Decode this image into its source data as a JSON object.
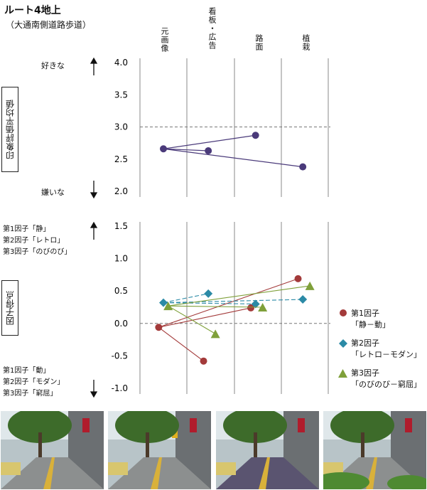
{
  "title": "ルート4地上",
  "subtitle": "（大通南側道路歩道）",
  "columns": [
    "元画像",
    "看板・広告",
    "路面",
    "植栽"
  ],
  "top_panel": {
    "ylabel": "印象評価平均値",
    "top_label": "好きな",
    "bottom_label": "嫌いな",
    "ticks": [
      "4.0",
      "3.5",
      "3.0",
      "2.5",
      "2.0"
    ]
  },
  "bottom_panel": {
    "ylabel": "因子得点",
    "ticks": [
      "1.5",
      "1.0",
      "0.5",
      "0.0",
      "-0.5",
      "-1.0"
    ],
    "top_labels": [
      "第1因子「静」",
      "第2因子「レトロ」",
      "第3因子「のびのび」"
    ],
    "bottom_labels": [
      "第1因子「動」",
      "第2因子「モダン」",
      "第3因子「窮屈」"
    ]
  },
  "legend": [
    {
      "name": "第1因子",
      "desc": "「静－動」",
      "color": "#a33a3a",
      "marker": "circle"
    },
    {
      "name": "第2因子",
      "desc": "「レトロ－モダン」",
      "color": "#2b8aa6",
      "marker": "diamond"
    },
    {
      "name": "第3因子",
      "desc": "「のびのび－窮屈」",
      "color": "#7fa03a",
      "marker": "triangle"
    }
  ],
  "colors": {
    "impression": "#4a3a7a",
    "grid": "#888888"
  },
  "chart_data": [
    {
      "type": "line",
      "categories": [
        "元画像",
        "看板・広告",
        "路面",
        "植栽"
      ],
      "ylim": [
        2.0,
        4.0
      ],
      "ylabel": "印象評価平均値",
      "points": [
        {
          "x": 0.0,
          "y": 2.66
        },
        {
          "x": 0.95,
          "y": 2.63
        },
        {
          "x": 1.95,
          "y": 2.87
        },
        {
          "x": 2.95,
          "y": 2.38
        }
      ],
      "links": [
        [
          0,
          1
        ],
        [
          0,
          2
        ],
        [
          0,
          3
        ]
      ]
    },
    {
      "type": "line",
      "categories": [
        "元画像",
        "看板・広告",
        "路面",
        "植栽"
      ],
      "ylim": [
        -1.0,
        1.5
      ],
      "ylabel": "因子得点",
      "series": [
        {
          "name": "第1因子",
          "points": [
            {
              "x": -0.1,
              "y": -0.06
            },
            {
              "x": 0.85,
              "y": -0.58
            },
            {
              "x": 1.85,
              "y": 0.24
            },
            {
              "x": 2.85,
              "y": 0.69
            }
          ]
        },
        {
          "name": "第2因子",
          "points": [
            {
              "x": 0.0,
              "y": 0.32
            },
            {
              "x": 0.95,
              "y": 0.46
            },
            {
              "x": 1.95,
              "y": 0.3
            },
            {
              "x": 2.95,
              "y": 0.37
            }
          ]
        },
        {
          "name": "第3因子",
          "points": [
            {
              "x": 0.1,
              "y": 0.27
            },
            {
              "x": 1.1,
              "y": -0.16
            },
            {
              "x": 2.1,
              "y": 0.25
            },
            {
              "x": 3.1,
              "y": 0.58
            }
          ]
        }
      ]
    }
  ],
  "photos": [
    "元画像",
    "看板・広告",
    "路面",
    "植栽"
  ]
}
